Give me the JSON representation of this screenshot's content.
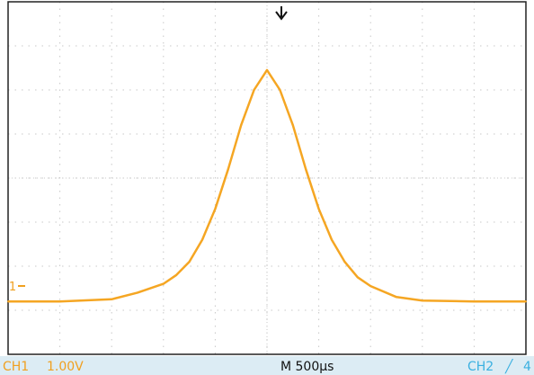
{
  "status_bar": {
    "ch1_label": "CH1",
    "ch1_scale": "1.00V",
    "timebase": "M 500µs",
    "ch2_label": "CH2",
    "trigger_slope_glyph": "╱",
    "ch2_trailing": "4"
  },
  "markers": {
    "ch1_ground_label": "1",
    "trigger_position_icon": "down-arrow-icon"
  },
  "colors": {
    "trace": "#f5a623",
    "ch1_text": "#f0a020",
    "ch2_text": "#3ab0e0",
    "grid": "#c8c8c8",
    "frame": "#222222",
    "status_bg": "#dcecf4"
  },
  "chart_data": {
    "type": "line",
    "title": "",
    "xlabel": "",
    "ylabel": "",
    "x_unit": "div",
    "y_unit": "div",
    "xlim": [
      -5,
      5
    ],
    "ylim": [
      -4,
      4
    ],
    "grid": true,
    "series": [
      {
        "x": [
          -5.0,
          -4.0,
          -3.0,
          -2.5,
          -2.0,
          -1.75,
          -1.5,
          -1.25,
          -1.0,
          -0.75,
          -0.5,
          -0.25,
          0.0,
          0.25,
          0.5,
          0.75,
          1.0,
          1.25,
          1.5,
          1.75,
          2.0,
          2.5,
          3.0,
          4.0,
          5.0
        ],
        "y": [
          -2.8,
          -2.8,
          -2.75,
          -2.6,
          -2.4,
          -2.2,
          -1.9,
          -1.4,
          -0.7,
          0.2,
          1.2,
          2.0,
          2.45,
          2.0,
          1.2,
          0.2,
          -0.7,
          -1.4,
          -1.9,
          -2.25,
          -2.45,
          -2.7,
          -2.78,
          -2.8,
          -2.8
        ]
      }
    ]
  }
}
